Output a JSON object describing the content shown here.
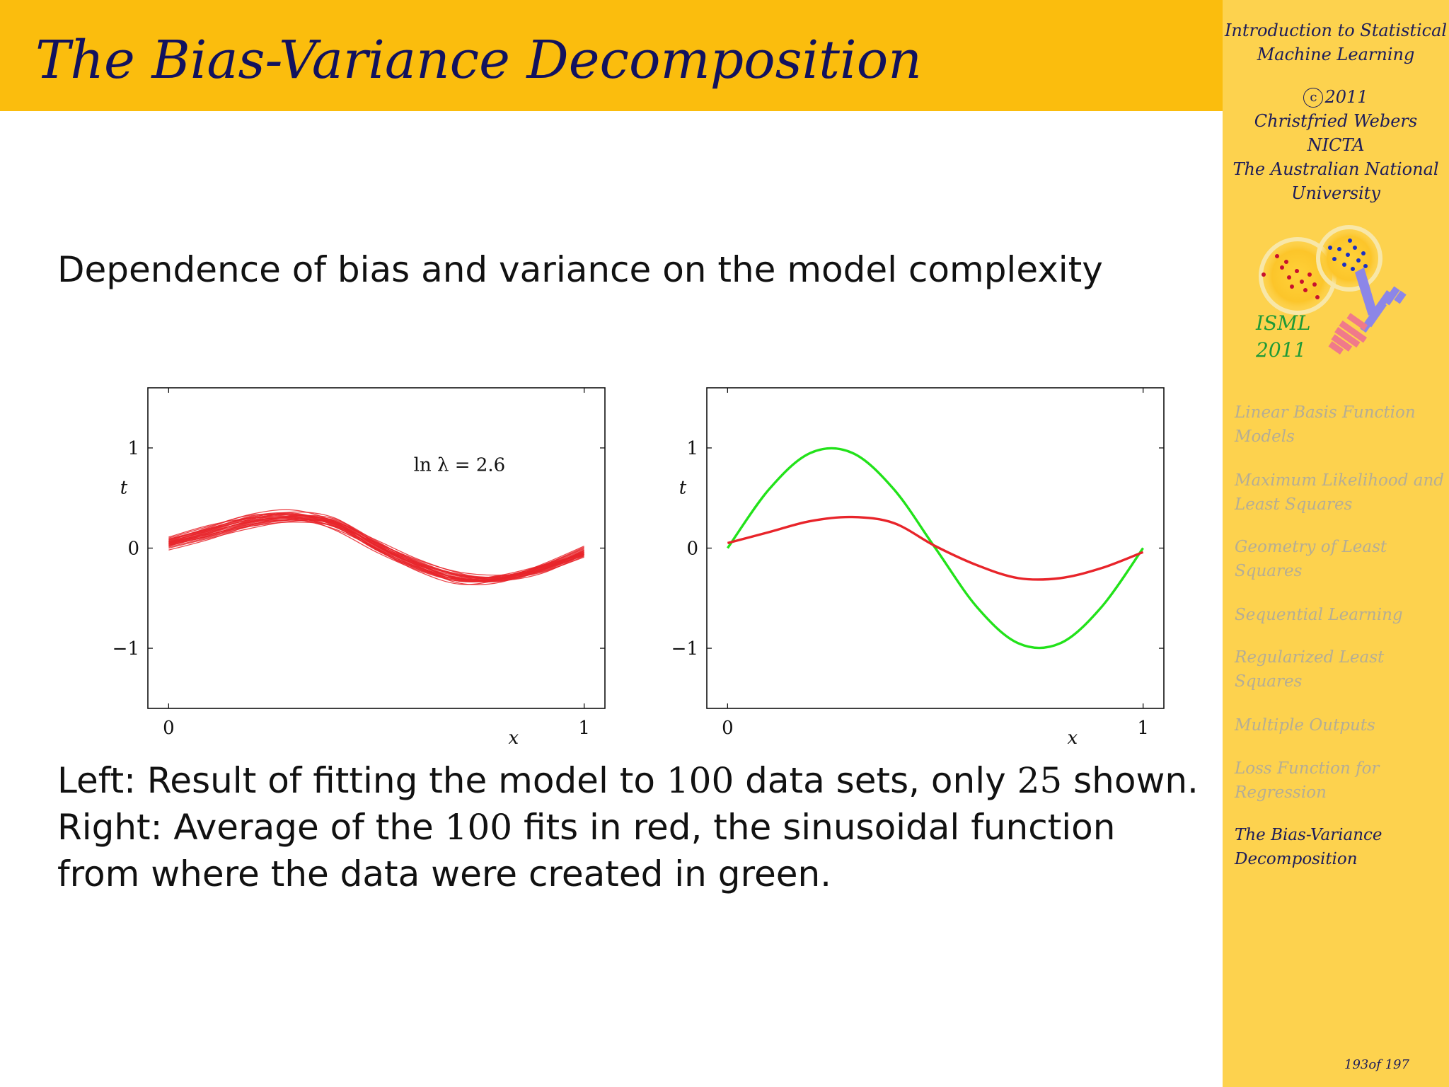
{
  "header": {
    "title": "The Bias-Variance Decomposition"
  },
  "sidebar": {
    "course_title_line1": "Introduction to Statistical",
    "course_title_line2": "Machine Learning",
    "copyright_symbol": "c",
    "year": "2011",
    "author": "Christfried Webers",
    "org1": "NICTA",
    "org2_line1": "The Australian National",
    "org2_line2": "University",
    "logo_line1": "ISML",
    "logo_line2": "2011",
    "nav": [
      {
        "line1": "Linear Basis Function",
        "line2": "Models",
        "active": false
      },
      {
        "line1": "Maximum Likelihood and",
        "line2": "Least Squares",
        "active": false
      },
      {
        "line1": "Geometry of Least",
        "line2": "Squares",
        "active": false
      },
      {
        "line1": "Sequential Learning",
        "line2": "",
        "active": false
      },
      {
        "line1": "Regularized Least",
        "line2": "Squares",
        "active": false
      },
      {
        "line1": "Multiple Outputs",
        "line2": "",
        "active": false
      },
      {
        "line1": "Loss Function for",
        "line2": "Regression",
        "active": false
      },
      {
        "line1": "The Bias-Variance",
        "line2": "Decomposition",
        "active": true
      }
    ],
    "page": "193of 197"
  },
  "main": {
    "subtitle": "Dependence of bias and variance on the model complexity",
    "caption": {
      "l1a": "Left: Result of fitting the model to ",
      "l1n1": "100",
      "l1b": " data sets, only ",
      "l1n2": "25",
      "l1c": " shown.",
      "l2a": "Right: Average of the ",
      "l2n": "100",
      "l2b": " fits in red, the sinusoidal function",
      "l3": "from where the data were created in green."
    }
  },
  "chart_data": [
    {
      "type": "line",
      "xlabel": "x",
      "ylabel": "t",
      "xlim": [
        -0.05,
        1.05
      ],
      "ylim": [
        -1.6,
        1.6
      ],
      "xticks": [
        "0",
        "1"
      ],
      "yticks": [
        "−1",
        "0",
        "1"
      ],
      "annotation": "ln λ = 2.6",
      "line_color": "#e8242a",
      "series_count_shown": 25,
      "x": [
        0,
        0.1,
        0.2,
        0.3,
        0.4,
        0.5,
        0.6,
        0.7,
        0.8,
        0.9,
        1.0
      ],
      "fits": [
        [
          0.05,
          0.16,
          0.27,
          0.31,
          0.25,
          0.02,
          -0.17,
          -0.3,
          -0.3,
          -0.2,
          -0.04
        ],
        [
          0.08,
          0.2,
          0.31,
          0.34,
          0.22,
          -0.02,
          -0.2,
          -0.31,
          -0.27,
          -0.17,
          -0.05
        ],
        [
          0.03,
          0.12,
          0.24,
          0.29,
          0.28,
          0.06,
          -0.14,
          -0.28,
          -0.33,
          -0.22,
          -0.02
        ],
        [
          0.1,
          0.22,
          0.33,
          0.32,
          0.18,
          -0.04,
          -0.22,
          -0.33,
          -0.3,
          -0.19,
          -0.08
        ],
        [
          0.0,
          0.1,
          0.2,
          0.27,
          0.26,
          0.08,
          -0.11,
          -0.25,
          -0.32,
          -0.25,
          -0.06
        ],
        [
          0.06,
          0.18,
          0.29,
          0.36,
          0.3,
          0.04,
          -0.18,
          -0.35,
          -0.34,
          -0.18,
          0.0
        ],
        [
          0.04,
          0.13,
          0.25,
          0.3,
          0.23,
          0.0,
          -0.19,
          -0.29,
          -0.28,
          -0.21,
          -0.07
        ],
        [
          0.09,
          0.19,
          0.28,
          0.3,
          0.21,
          0.01,
          -0.16,
          -0.27,
          -0.29,
          -0.19,
          -0.03
        ],
        [
          -0.02,
          0.09,
          0.23,
          0.32,
          0.29,
          0.07,
          -0.15,
          -0.31,
          -0.31,
          -0.2,
          -0.05
        ],
        [
          0.07,
          0.21,
          0.34,
          0.38,
          0.26,
          -0.01,
          -0.23,
          -0.36,
          -0.31,
          -0.16,
          0.02
        ],
        [
          0.05,
          0.14,
          0.22,
          0.26,
          0.22,
          0.05,
          -0.12,
          -0.24,
          -0.27,
          -0.23,
          -0.09
        ],
        [
          0.02,
          0.15,
          0.28,
          0.33,
          0.27,
          0.03,
          -0.18,
          -0.32,
          -0.32,
          -0.21,
          -0.04
        ],
        [
          0.11,
          0.23,
          0.3,
          0.29,
          0.19,
          0.0,
          -0.17,
          -0.28,
          -0.28,
          -0.18,
          -0.06
        ],
        [
          0.04,
          0.17,
          0.29,
          0.34,
          0.25,
          -0.01,
          -0.21,
          -0.31,
          -0.29,
          -0.17,
          0.01
        ],
        [
          0.06,
          0.15,
          0.26,
          0.31,
          0.27,
          0.05,
          -0.16,
          -0.3,
          -0.32,
          -0.22,
          -0.05
        ],
        [
          0.01,
          0.11,
          0.22,
          0.28,
          0.24,
          0.03,
          -0.15,
          -0.27,
          -0.3,
          -0.24,
          -0.08
        ],
        [
          0.08,
          0.19,
          0.32,
          0.35,
          0.24,
          0.0,
          -0.2,
          -0.33,
          -0.31,
          -0.18,
          -0.02
        ],
        [
          0.03,
          0.16,
          0.27,
          0.3,
          0.24,
          0.03,
          -0.17,
          -0.3,
          -0.31,
          -0.2,
          -0.04
        ],
        [
          0.07,
          0.17,
          0.26,
          0.28,
          0.22,
          0.02,
          -0.15,
          -0.27,
          -0.29,
          -0.21,
          -0.06
        ],
        [
          0.05,
          0.18,
          0.3,
          0.33,
          0.26,
          0.02,
          -0.19,
          -0.32,
          -0.3,
          -0.19,
          -0.03
        ],
        [
          0.02,
          0.13,
          0.26,
          0.32,
          0.27,
          0.05,
          -0.16,
          -0.31,
          -0.33,
          -0.21,
          -0.03
        ],
        [
          0.09,
          0.2,
          0.3,
          0.31,
          0.21,
          -0.01,
          -0.19,
          -0.3,
          -0.28,
          -0.18,
          -0.05
        ],
        [
          0.04,
          0.14,
          0.24,
          0.28,
          0.25,
          0.04,
          -0.14,
          -0.26,
          -0.29,
          -0.22,
          -0.07
        ],
        [
          0.06,
          0.19,
          0.31,
          0.34,
          0.23,
          -0.02,
          -0.21,
          -0.33,
          -0.3,
          -0.17,
          -0.01
        ],
        [
          0.03,
          0.12,
          0.23,
          0.29,
          0.26,
          0.06,
          -0.13,
          -0.27,
          -0.31,
          -0.23,
          -0.06
        ]
      ]
    },
    {
      "type": "line",
      "xlabel": "x",
      "ylabel": "t",
      "xlim": [
        -0.05,
        1.05
      ],
      "ylim": [
        -1.6,
        1.6
      ],
      "xticks": [
        "0",
        "1"
      ],
      "yticks": [
        "−1",
        "0",
        "1"
      ],
      "x": [
        0,
        0.1,
        0.2,
        0.3,
        0.4,
        0.5,
        0.6,
        0.7,
        0.8,
        0.9,
        1.0
      ],
      "series": [
        {
          "color": "#22e21a",
          "values": [
            0.0,
            0.588,
            0.951,
            0.951,
            0.588,
            0.0,
            -0.588,
            -0.951,
            -0.951,
            -0.588,
            0.0
          ]
        },
        {
          "color": "#e8242a",
          "values": [
            0.05,
            0.16,
            0.27,
            0.31,
            0.25,
            0.02,
            -0.17,
            -0.3,
            -0.3,
            -0.2,
            -0.04
          ]
        }
      ]
    }
  ]
}
